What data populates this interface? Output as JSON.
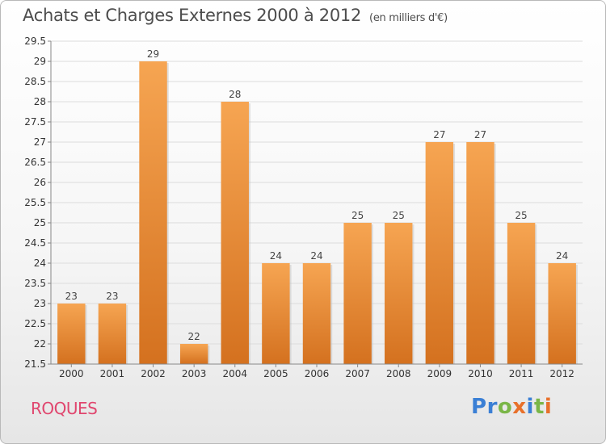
{
  "header": {
    "title": "Achats et Charges Externes 2000 à 2012",
    "subtitle": "(en milliers d'€)"
  },
  "footer": {
    "commune": "ROQUES",
    "brand_letters": [
      "P",
      "r",
      "o",
      "x",
      "i",
      "t",
      "i"
    ],
    "brand_colors": [
      "#3a7fd5",
      "#3a7fd5",
      "#7ab648",
      "#e8702a",
      "#3a7fd5",
      "#7ab648",
      "#e8702a"
    ]
  },
  "chart_data": {
    "type": "bar",
    "categories": [
      "2000",
      "2001",
      "2002",
      "2003",
      "2004",
      "2005",
      "2006",
      "2007",
      "2008",
      "2009",
      "2010",
      "2011",
      "2012"
    ],
    "values": [
      23,
      23,
      29,
      22,
      28,
      24,
      24,
      25,
      25,
      27,
      27,
      25,
      24
    ],
    "ylim": [
      21.5,
      29.5
    ],
    "yticks": [
      21.5,
      22,
      22.5,
      23,
      23.5,
      24,
      24.5,
      25,
      25.5,
      26,
      26.5,
      27,
      27.5,
      28,
      28.5,
      29,
      29.5
    ],
    "grid": true,
    "bar_color_top": "#f6a552",
    "bar_color_bottom": "#d4711f"
  }
}
